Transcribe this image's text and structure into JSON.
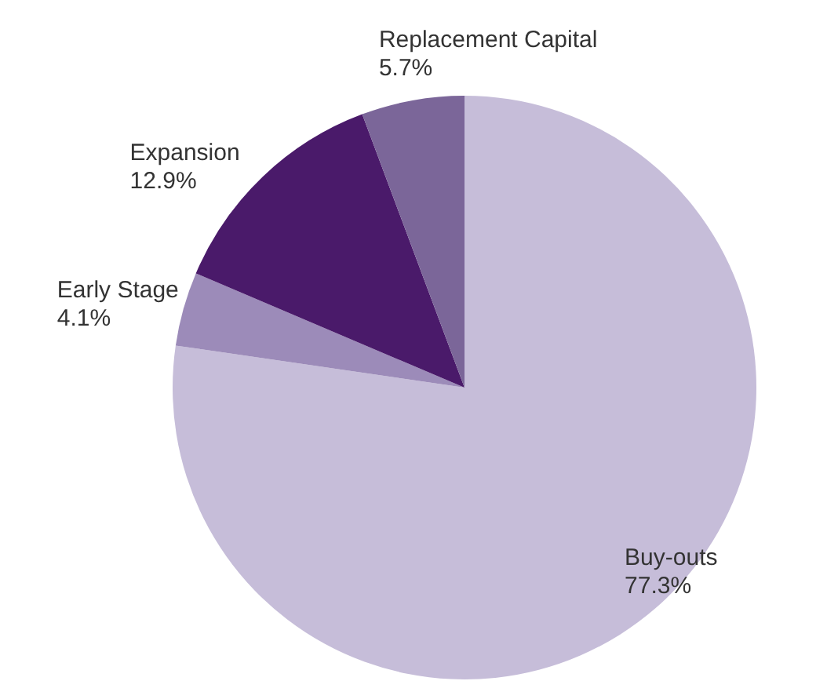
{
  "chart_data": {
    "type": "pie",
    "categories": [
      "Buy-outs",
      "Early Stage",
      "Expansion",
      "Replacement Capital"
    ],
    "values": [
      77.3,
      4.1,
      12.9,
      5.7
    ],
    "value_labels": [
      "77.3%",
      "4.1%",
      "12.9%",
      "5.7%"
    ],
    "colors": [
      "#c6bdd9",
      "#9c8bb9",
      "#4a1a6a",
      "#7b6699"
    ],
    "legend": false
  }
}
